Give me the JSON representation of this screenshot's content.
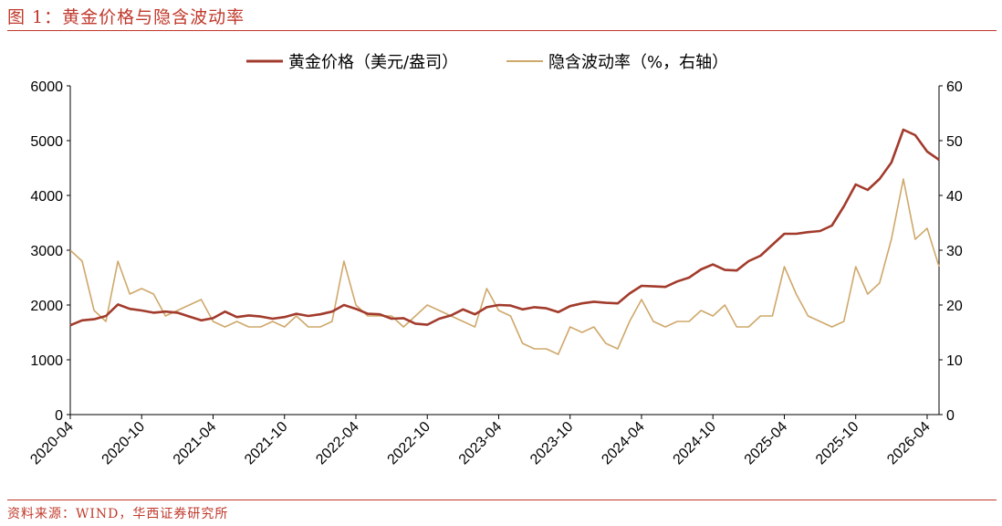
{
  "header": {
    "title": "图 1：黄金价格与隐含波动率"
  },
  "footer": {
    "source": "资料来源：WIND，华西证券研究所"
  },
  "colors": {
    "accent": "#c0392b",
    "gold": "#a23b2c",
    "vol": "#cfa86b"
  },
  "chart_data": {
    "type": "line",
    "title": "",
    "xlabel": "",
    "ylabel": "",
    "x_tick_labels": [
      "2020-04",
      "2020-10",
      "2021-04",
      "2021-10",
      "2022-04",
      "2022-10",
      "2023-04",
      "2023-10",
      "2024-04",
      "2024-10",
      "2025-04",
      "2025-10",
      "2026-04"
    ],
    "x_range": [
      "2020-04",
      "2026-05"
    ],
    "y_left": {
      "lim": [
        0,
        6000
      ],
      "ticks": [
        0,
        1000,
        2000,
        3000,
        4000,
        5000,
        6000
      ]
    },
    "y_right": {
      "lim": [
        0,
        60
      ],
      "ticks": [
        0,
        10,
        20,
        30,
        40,
        50,
        60
      ]
    },
    "grid": false,
    "legend_position": "top-center",
    "series": [
      {
        "name": "黄金价格（美元/盎司）",
        "axis": "left",
        "color": "#a23b2c",
        "points": [
          [
            "2020-04",
            1630
          ],
          [
            "2020-05",
            1720
          ],
          [
            "2020-06",
            1740
          ],
          [
            "2020-07",
            1800
          ],
          [
            "2020-08",
            2010
          ],
          [
            "2020-09",
            1930
          ],
          [
            "2020-10",
            1900
          ],
          [
            "2020-11",
            1860
          ],
          [
            "2020-12",
            1880
          ],
          [
            "2021-01",
            1860
          ],
          [
            "2021-02",
            1790
          ],
          [
            "2021-03",
            1720
          ],
          [
            "2021-04",
            1760
          ],
          [
            "2021-05",
            1880
          ],
          [
            "2021-06",
            1780
          ],
          [
            "2021-07",
            1810
          ],
          [
            "2021-08",
            1790
          ],
          [
            "2021-09",
            1750
          ],
          [
            "2021-10",
            1780
          ],
          [
            "2021-11",
            1840
          ],
          [
            "2021-12",
            1800
          ],
          [
            "2022-01",
            1830
          ],
          [
            "2022-02",
            1880
          ],
          [
            "2022-03",
            2000
          ],
          [
            "2022-04",
            1930
          ],
          [
            "2022-05",
            1840
          ],
          [
            "2022-06",
            1830
          ],
          [
            "2022-07",
            1750
          ],
          [
            "2022-08",
            1760
          ],
          [
            "2022-09",
            1660
          ],
          [
            "2022-10",
            1640
          ],
          [
            "2022-11",
            1750
          ],
          [
            "2022-12",
            1810
          ],
          [
            "2023-01",
            1920
          ],
          [
            "2023-02",
            1830
          ],
          [
            "2023-03",
            1960
          ],
          [
            "2023-04",
            2000
          ],
          [
            "2023-05",
            1990
          ],
          [
            "2023-06",
            1920
          ],
          [
            "2023-07",
            1960
          ],
          [
            "2023-08",
            1940
          ],
          [
            "2023-09",
            1870
          ],
          [
            "2023-10",
            1980
          ],
          [
            "2023-11",
            2030
          ],
          [
            "2023-12",
            2060
          ],
          [
            "2024-01",
            2040
          ],
          [
            "2024-02",
            2030
          ],
          [
            "2024-03",
            2210
          ],
          [
            "2024-04",
            2350
          ],
          [
            "2024-05",
            2340
          ],
          [
            "2024-06",
            2330
          ],
          [
            "2024-07",
            2430
          ],
          [
            "2024-08",
            2500
          ],
          [
            "2024-09",
            2650
          ],
          [
            "2024-10",
            2740
          ],
          [
            "2024-11",
            2640
          ],
          [
            "2024-12",
            2630
          ],
          [
            "2025-01",
            2800
          ],
          [
            "2025-02",
            2900
          ],
          [
            "2025-03",
            3100
          ],
          [
            "2025-04",
            3300
          ],
          [
            "2025-05",
            3300
          ],
          [
            "2025-06",
            3330
          ],
          [
            "2025-07",
            3350
          ],
          [
            "2025-08",
            3450
          ],
          [
            "2025-09",
            3800
          ],
          [
            "2025-10",
            4200
          ],
          [
            "2025-11",
            4100
          ],
          [
            "2025-12",
            4300
          ],
          [
            "2026-01",
            4600
          ],
          [
            "2026-02",
            5200
          ],
          [
            "2026-03",
            5100
          ],
          [
            "2026-04",
            4800
          ],
          [
            "2026-05",
            4650
          ]
        ]
      },
      {
        "name": "隐含波动率（%，右轴）",
        "axis": "right",
        "color": "#cfa86b",
        "points": [
          [
            "2020-04",
            30
          ],
          [
            "2020-05",
            28
          ],
          [
            "2020-06",
            19
          ],
          [
            "2020-07",
            17
          ],
          [
            "2020-08",
            28
          ],
          [
            "2020-09",
            22
          ],
          [
            "2020-10",
            23
          ],
          [
            "2020-11",
            22
          ],
          [
            "2020-12",
            18
          ],
          [
            "2021-01",
            19
          ],
          [
            "2021-02",
            20
          ],
          [
            "2021-03",
            21
          ],
          [
            "2021-04",
            17
          ],
          [
            "2021-05",
            16
          ],
          [
            "2021-06",
            17
          ],
          [
            "2021-07",
            16
          ],
          [
            "2021-08",
            16
          ],
          [
            "2021-09",
            17
          ],
          [
            "2021-10",
            16
          ],
          [
            "2021-11",
            18
          ],
          [
            "2021-12",
            16
          ],
          [
            "2022-01",
            16
          ],
          [
            "2022-02",
            17
          ],
          [
            "2022-03",
            28
          ],
          [
            "2022-04",
            20
          ],
          [
            "2022-05",
            18
          ],
          [
            "2022-06",
            18
          ],
          [
            "2022-07",
            18
          ],
          [
            "2022-08",
            16
          ],
          [
            "2022-09",
            18
          ],
          [
            "2022-10",
            20
          ],
          [
            "2022-11",
            19
          ],
          [
            "2022-12",
            18
          ],
          [
            "2023-01",
            17
          ],
          [
            "2023-02",
            16
          ],
          [
            "2023-03",
            23
          ],
          [
            "2023-04",
            19
          ],
          [
            "2023-05",
            18
          ],
          [
            "2023-06",
            13
          ],
          [
            "2023-07",
            12
          ],
          [
            "2023-08",
            12
          ],
          [
            "2023-09",
            11
          ],
          [
            "2023-10",
            16
          ],
          [
            "2023-11",
            15
          ],
          [
            "2023-12",
            16
          ],
          [
            "2024-01",
            13
          ],
          [
            "2024-02",
            12
          ],
          [
            "2024-03",
            17
          ],
          [
            "2024-04",
            21
          ],
          [
            "2024-05",
            17
          ],
          [
            "2024-06",
            16
          ],
          [
            "2024-07",
            17
          ],
          [
            "2024-08",
            17
          ],
          [
            "2024-09",
            19
          ],
          [
            "2024-10",
            18
          ],
          [
            "2024-11",
            20
          ],
          [
            "2024-12",
            16
          ],
          [
            "2025-01",
            16
          ],
          [
            "2025-02",
            18
          ],
          [
            "2025-03",
            18
          ],
          [
            "2025-04",
            27
          ],
          [
            "2025-05",
            22
          ],
          [
            "2025-06",
            18
          ],
          [
            "2025-07",
            17
          ],
          [
            "2025-08",
            16
          ],
          [
            "2025-09",
            17
          ],
          [
            "2025-10",
            27
          ],
          [
            "2025-11",
            22
          ],
          [
            "2025-12",
            24
          ],
          [
            "2026-01",
            32
          ],
          [
            "2026-02",
            43
          ],
          [
            "2026-03",
            32
          ],
          [
            "2026-04",
            34
          ],
          [
            "2026-05",
            27
          ]
        ]
      }
    ]
  }
}
